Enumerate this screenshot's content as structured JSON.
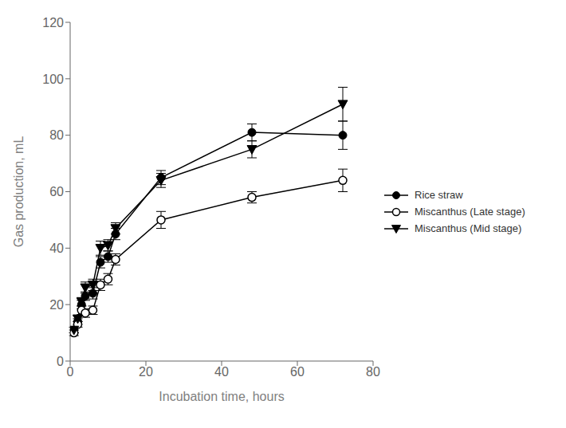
{
  "chart_data": {
    "type": "line",
    "x_label": "Incubation time, hours",
    "y_label": "Gas production, mL",
    "x": [
      1,
      2,
      3,
      4,
      6,
      8,
      10,
      12,
      24,
      48,
      72
    ],
    "series": [
      {
        "name": "Rice straw",
        "color": "#000000",
        "marker": "circle",
        "values": [
          11,
          14,
          20,
          23,
          24,
          35,
          37,
          45,
          65,
          81,
          80
        ],
        "yerr": [
          1.0,
          1.0,
          1.5,
          1.5,
          2.0,
          2.0,
          2.0,
          2.0,
          2.5,
          3.0,
          5.0
        ]
      },
      {
        "name": "Miscanthus (Late stage)",
        "color": "#000000",
        "marker": "open_circle",
        "values": [
          10,
          13,
          18,
          17,
          18,
          27,
          29,
          36,
          50,
          58,
          64
        ],
        "yerr": [
          1.0,
          1.0,
          1.5,
          1.5,
          1.5,
          2.0,
          2.0,
          2.0,
          3.0,
          2.0,
          4.0
        ]
      },
      {
        "name": "Miscanthus (Mid stage)",
        "color": "#000000",
        "marker": "triangle_down",
        "values": [
          11,
          15,
          21,
          26,
          27,
          40,
          41,
          47,
          64,
          75,
          91
        ],
        "yerr": [
          1.0,
          1.0,
          1.5,
          2.0,
          2.0,
          2.5,
          2.0,
          2.0,
          2.5,
          3.0,
          6.0
        ]
      }
    ],
    "xlim": [
      0,
      80
    ],
    "ylim": [
      0,
      120
    ],
    "xticks": [
      0,
      20,
      40,
      60,
      80
    ],
    "yticks": [
      0,
      20,
      40,
      60,
      80,
      100,
      120
    ],
    "grid": false,
    "legend": "right"
  }
}
